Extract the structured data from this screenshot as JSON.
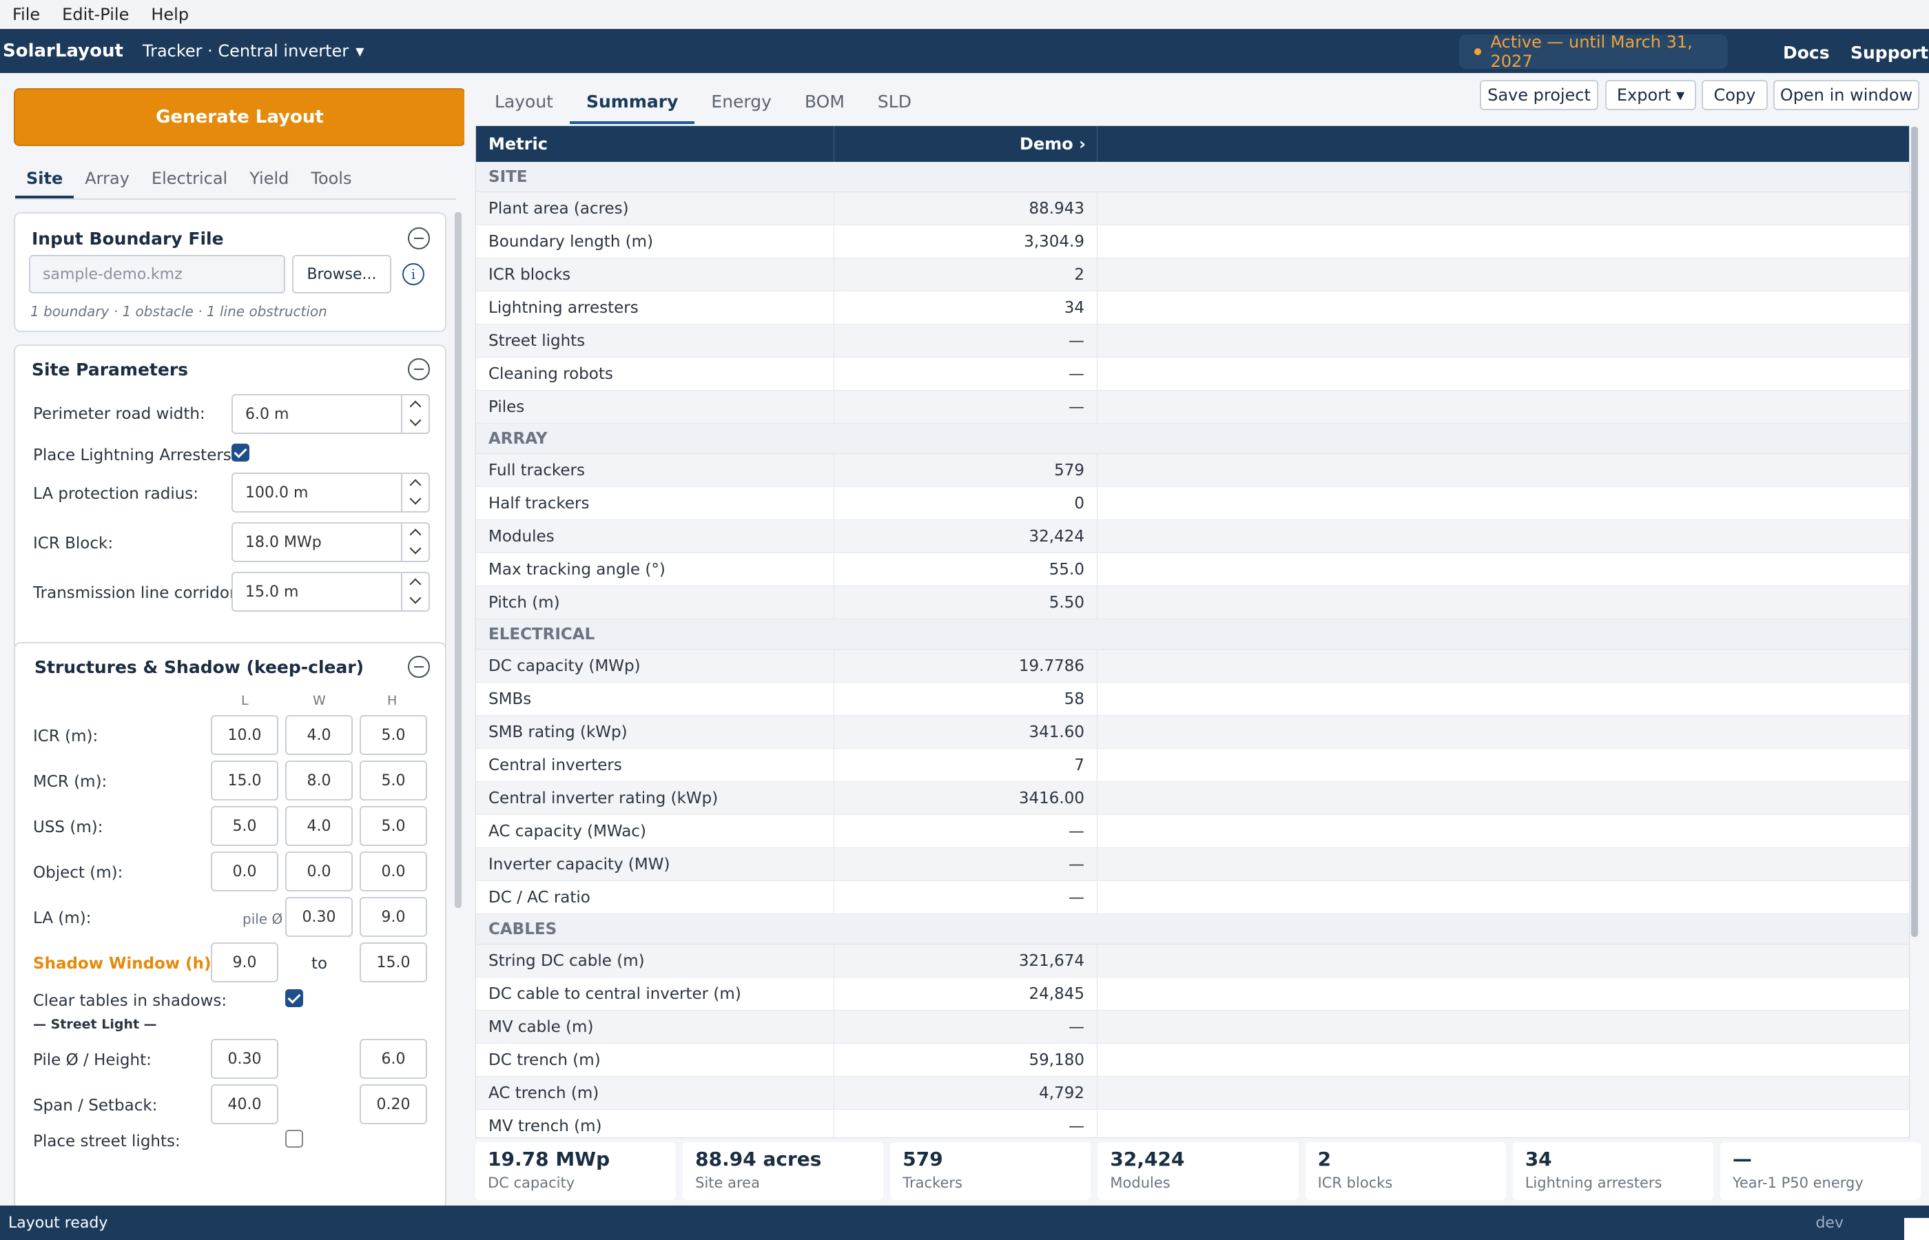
{
  "menu": [
    "File",
    "Edit-Pile",
    "Help"
  ],
  "app": {
    "brand": "SolarLayout",
    "mode": "Tracker · Central inverter",
    "license": "Active — until March 31, 2027",
    "docs": "Docs",
    "support": "Support"
  },
  "left": {
    "generate": "Generate Layout",
    "tabs": [
      "Site",
      "Array",
      "Electrical",
      "Yield",
      "Tools"
    ],
    "boundary": {
      "title": "Input Boundary File",
      "placeholder": "sample-demo.kmz",
      "browse": "Browse...",
      "summary": "1 boundary · 1 obstacle · 1 line obstruction"
    },
    "site": {
      "title": "Site Parameters",
      "perimeter_label": "Perimeter road width:",
      "perimeter_value": "6.0  m",
      "la_place_label": "Place Lightning Arresters:",
      "la_radius_label": "LA protection radius:",
      "la_radius_value": "100.0  m",
      "icr_label": "ICR Block:",
      "icr_value": "18.0  MWp",
      "tl_label": "Transmission line corridor:",
      "tl_value": "15.0  m"
    },
    "structures": {
      "title": "Structures & Shadow (keep-clear)",
      "cols": [
        "L",
        "W",
        "H"
      ],
      "icr": {
        "label": "ICR (m):",
        "v": [
          "10.0",
          "4.0",
          "5.0"
        ]
      },
      "mcr": {
        "label": "MCR (m):",
        "v": [
          "15.0",
          "8.0",
          "5.0"
        ]
      },
      "uss": {
        "label": "USS (m):",
        "v": [
          "5.0",
          "4.0",
          "5.0"
        ]
      },
      "obj": {
        "label": "Object (m):",
        "v": [
          "0.0",
          "0.0",
          "0.0"
        ]
      },
      "la": {
        "label": "LA (m):",
        "pile": "pile Ø",
        "v": [
          "0.30",
          "9.0"
        ]
      },
      "shadow": {
        "label": "Shadow Window (h):",
        "from": "9.0",
        "to_label": "to",
        "to": "15.0"
      },
      "clear_label": "Clear tables in shadows:",
      "street_title": "— Street Light —",
      "pile_label": "Pile Ø / Height:",
      "pile_v": [
        "0.30",
        "6.0"
      ],
      "span_label": "Span / Setback:",
      "span_v": [
        "40.0",
        "0.20"
      ],
      "place_street_label": "Place street lights:"
    }
  },
  "right": {
    "tabs": [
      "Layout",
      "Summary",
      "Energy",
      "BOM",
      "SLD"
    ],
    "buttons": {
      "save": "Save project",
      "export": "Export ▾",
      "copy": "Copy",
      "open": "Open in window"
    },
    "table": {
      "h1": "Metric",
      "h2": "Demo ›",
      "sections": [
        {
          "title": "SITE",
          "rows": [
            [
              "Plant area (acres)",
              "88.943"
            ],
            [
              "Boundary length (m)",
              "3,304.9"
            ],
            [
              "ICR blocks",
              "2"
            ],
            [
              "Lightning arresters",
              "34"
            ],
            [
              "Street lights",
              "—"
            ],
            [
              "Cleaning robots",
              "—"
            ],
            [
              "Piles",
              "—"
            ]
          ]
        },
        {
          "title": "ARRAY",
          "rows": [
            [
              "Full trackers",
              "579"
            ],
            [
              "Half trackers",
              "0"
            ],
            [
              "Modules",
              "32,424"
            ],
            [
              "Max tracking angle (°)",
              "55.0"
            ],
            [
              "Pitch (m)",
              "5.50"
            ]
          ]
        },
        {
          "title": "ELECTRICAL",
          "rows": [
            [
              "DC capacity (MWp)",
              "19.7786"
            ],
            [
              "SMBs",
              "58"
            ],
            [
              "SMB rating (kWp)",
              "341.60"
            ],
            [
              "Central inverters",
              "7"
            ],
            [
              "Central inverter rating (kWp)",
              "3416.00"
            ],
            [
              "AC capacity (MWac)",
              "—"
            ],
            [
              "Inverter capacity (MW)",
              "—"
            ],
            [
              "DC / AC ratio",
              "—"
            ]
          ]
        },
        {
          "title": "CABLES",
          "rows": [
            [
              "String DC cable (m)",
              "321,674"
            ],
            [
              "DC cable to central inverter (m)",
              "24,845"
            ],
            [
              "MV cable (m)",
              "—"
            ],
            [
              "DC trench (m)",
              "59,180"
            ],
            [
              "AC trench (m)",
              "4,792"
            ],
            [
              "MV trench (m)",
              "—"
            ]
          ]
        }
      ]
    },
    "kpis": [
      {
        "v": "19.78 MWp",
        "l": "DC capacity"
      },
      {
        "v": "88.94 acres",
        "l": "Site area"
      },
      {
        "v": "579",
        "l": "Trackers"
      },
      {
        "v": "32,424",
        "l": "Modules"
      },
      {
        "v": "2",
        "l": "ICR blocks"
      },
      {
        "v": "34",
        "l": "Lightning arresters"
      },
      {
        "v": "—",
        "l": "Year-1 P50 energy"
      }
    ]
  },
  "status": {
    "text": "Layout ready",
    "env": "dev"
  }
}
